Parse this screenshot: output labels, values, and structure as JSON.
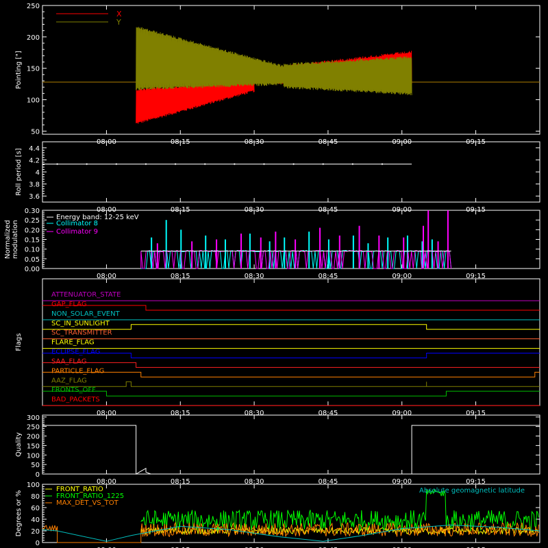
{
  "chart_data": [
    {
      "type": "line",
      "ylabel": "Pointing [\"]",
      "ylim": [
        45,
        250
      ],
      "yticks": [
        50,
        100,
        150,
        200,
        250
      ],
      "legend": {
        "placement": "top-left",
        "entries": [
          {
            "name": "X",
            "color": "#ff0000"
          },
          {
            "name": "Y",
            "color": "#808000"
          }
        ]
      },
      "series": [
        {
          "name": "X",
          "color": "#ff0000",
          "segments": [
            {
              "t0": "07:47",
              "t1": "08:06",
              "lo": 128,
              "hi": 128
            },
            {
              "t0": "08:06",
              "t1": "08:30",
              "lo_from": 60,
              "lo_to": 112,
              "hi_from": 118,
              "hi_to": 132
            },
            {
              "t0": "08:30",
              "t1": "09:02",
              "lo_from": 125,
              "lo_to": 125,
              "hi_from": 150,
              "hi_to": 178
            },
            {
              "t0": "09:02",
              "t1": "09:28",
              "lo": 128,
              "hi": 128
            }
          ]
        },
        {
          "name": "Y",
          "color": "#808000",
          "segments": [
            {
              "t0": "07:47",
              "t1": "08:06",
              "lo": 128,
              "hi": 128
            },
            {
              "t0": "08:06",
              "t1": "08:36",
              "lo_from": 115,
              "lo_to": 123,
              "hi_from": 218,
              "hi_to": 155
            },
            {
              "t0": "08:36",
              "t1": "09:02",
              "lo_from": 118,
              "lo_to": 107,
              "hi_from": 158,
              "hi_to": 170
            },
            {
              "t0": "09:02",
              "t1": "09:28",
              "lo": 128,
              "hi": 128
            }
          ]
        }
      ]
    },
    {
      "type": "line",
      "ylabel": "Roll period [s]",
      "ylim": [
        3.5,
        4.5
      ],
      "yticks": [
        3.6,
        3.8,
        4.0,
        4.2,
        4.4
      ],
      "series": [
        {
          "color": "#ffffff",
          "constant": 4.13,
          "t0": "07:47",
          "t1": "09:02"
        }
      ]
    },
    {
      "type": "bar",
      "ylabel": "Normalized modulation",
      "ylim": [
        0,
        0.3
      ],
      "yticks": [
        "0.00",
        "0.05",
        "0.10",
        "0.15",
        "0.20",
        "0.25",
        "0.30"
      ],
      "legend_title": "Energy band: 12-25 keV",
      "legend": {
        "placement": "top-left"
      },
      "active_range": [
        "08:07",
        "09:10"
      ],
      "baseline": 0.09,
      "series": [
        {
          "name": "Collimator 8",
          "color": "#00ffff",
          "peaks": [
            [
              "08:09",
              0.16
            ],
            [
              "08:12",
              0.25
            ],
            [
              "08:15",
              0.2
            ],
            [
              "08:20",
              0.17
            ],
            [
              "08:24",
              0.15
            ],
            [
              "08:29",
              0.18
            ],
            [
              "08:33",
              0.14
            ],
            [
              "08:36",
              0.16
            ],
            [
              "08:41",
              0.19
            ],
            [
              "08:45",
              0.15
            ],
            [
              "08:50",
              0.17
            ],
            [
              "08:53",
              0.13
            ],
            [
              "08:57",
              0.16
            ],
            [
              "09:01",
              0.17
            ],
            [
              "09:04",
              0.14
            ],
            [
              "09:06",
              0.15
            ]
          ]
        },
        {
          "name": "Collimator 9",
          "color": "#ff00ff",
          "peaks": [
            [
              "08:10",
              0.13
            ],
            [
              "08:17",
              0.14
            ],
            [
              "08:22",
              0.15
            ],
            [
              "08:27",
              0.18
            ],
            [
              "08:31",
              0.16
            ],
            [
              "08:34",
              0.19
            ],
            [
              "08:38",
              0.15
            ],
            [
              "08:43",
              0.21
            ],
            [
              "08:47",
              0.17
            ],
            [
              "08:51",
              0.22
            ],
            [
              "08:55",
              0.17
            ],
            [
              "09:00",
              0.16
            ],
            [
              "09:04",
              0.22
            ],
            [
              "09:05",
              0.3
            ],
            [
              "09:07",
              0.14
            ],
            [
              "09:09",
              0.3
            ]
          ]
        }
      ]
    },
    {
      "type": "line",
      "ylabel": "Flags",
      "series": [
        {
          "name": "ATTENUATOR_STATE",
          "color": "#c000c0",
          "steps": []
        },
        {
          "name": "GAP_FLAG",
          "color": "#ff0000",
          "steps": [
            [
              "08:08",
              -1
            ]
          ],
          "initial": 1
        },
        {
          "name": "NON_SOLAR_EVENT",
          "color": "#00c0c0",
          "steps": []
        },
        {
          "name": "SC_IN_SUNLIGHT",
          "color": "#ffff00",
          "steps": [
            [
              "08:05",
              1
            ],
            [
              "09:05",
              0
            ]
          ]
        },
        {
          "name": "SC_TRANSMITTER",
          "color": "#ff6030",
          "steps": []
        },
        {
          "name": "FLARE_FLAG",
          "color": "#ffff00",
          "steps": []
        },
        {
          "name": "ECLIPSE_FLAG",
          "color": "#0000ff",
          "steps": [
            [
              "08:05",
              0
            ],
            [
              "09:05",
              1
            ]
          ],
          "initial": 1
        },
        {
          "name": "SAA_FLAG",
          "color": "#ff2020",
          "steps": [
            [
              "08:06",
              0
            ]
          ],
          "initial": 1
        },
        {
          "name": "PARTICLE_FLAG",
          "color": "#ff8000",
          "steps": [
            [
              "08:07",
              0
            ],
            [
              "09:27",
              1
            ]
          ],
          "initial": 1
        },
        {
          "name": "AAZ_FLAG",
          "color": "#808000",
          "steps": [
            [
              "08:04",
              1
            ],
            [
              "08:05",
              0
            ],
            [
              "09:05",
              1
            ],
            [
              "09:05",
              0
            ]
          ]
        },
        {
          "name": "FRONTS_OFF",
          "color": "#00c000",
          "steps": [
            [
              "08:00",
              0
            ],
            [
              "09:09",
              1
            ]
          ],
          "initial": 1
        },
        {
          "name": "BAD_PACKETS",
          "color": "#ff0000",
          "steps": []
        }
      ]
    },
    {
      "type": "line",
      "ylabel": "Quality",
      "ylim": [
        0,
        310
      ],
      "yticks": [
        0,
        50,
        100,
        150,
        200,
        250,
        300
      ],
      "series": [
        {
          "color": "#ffffff",
          "points": [
            [
              "07:47",
              256
            ],
            [
              "08:06",
              256
            ],
            [
              "08:06",
              0
            ],
            [
              "08:07",
              15
            ],
            [
              "08:08",
              30
            ],
            [
              "08:08",
              10
            ],
            [
              "08:09",
              0
            ],
            [
              "09:02",
              0
            ],
            [
              "09:02",
              256
            ],
            [
              "09:28",
              256
            ]
          ]
        }
      ]
    },
    {
      "type": "line",
      "ylabel": "Degrees or %",
      "ylim": [
        0,
        100
      ],
      "yticks": [
        0,
        20,
        40,
        60,
        80,
        100
      ],
      "annotation": "Absolute geomagnetic latitude",
      "legend": {
        "placement": "top-left"
      },
      "series": [
        {
          "name": "FRONT_RATIO",
          "color": "#ffff00",
          "base": 20,
          "noise": 6,
          "t0": "08:07",
          "t1": "09:28"
        },
        {
          "name": "FRONT_RATIO_1225",
          "color": "#00ff00",
          "base": 38,
          "noise": 18,
          "t0": "08:07",
          "t1": "09:28",
          "spike": {
            "t0": "09:05",
            "t1": "09:09",
            "value": 85
          }
        },
        {
          "name": "MAX_DET_VS_TOT",
          "color": "#ff8000",
          "base": 22,
          "noise": 12,
          "t0": "07:47",
          "t1": "09:28",
          "pre": {
            "t0": "07:47",
            "t1": "07:50",
            "value": 25
          }
        },
        {
          "name": "Absolute geomagnetic latitude",
          "color": "#00c0c0",
          "points": [
            [
              "07:47",
              22
            ],
            [
              "07:50",
              20
            ],
            [
              "08:00",
              2
            ],
            [
              "08:05",
              12
            ],
            [
              "08:15",
              28
            ],
            [
              "08:25",
              22
            ],
            [
              "08:35",
              10
            ],
            [
              "08:44",
              2
            ],
            [
              "08:52",
              12
            ],
            [
              "09:00",
              24
            ],
            [
              "09:10",
              30
            ],
            [
              "09:20",
              26
            ],
            [
              "09:28",
              20
            ]
          ]
        }
      ]
    }
  ],
  "time_axis": {
    "range": [
      "07:47",
      "09:28"
    ],
    "ticks": [
      "08:00",
      "08:15",
      "08:30",
      "08:45",
      "09:00",
      "09:15"
    ]
  }
}
